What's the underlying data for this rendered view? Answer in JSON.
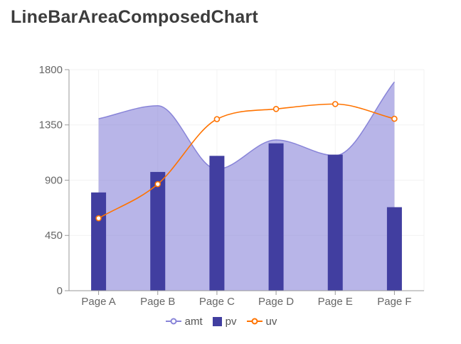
{
  "page": {
    "title": "LineBarAreaComposedChart"
  },
  "chart_data": {
    "type": "composed",
    "categories": [
      "Page A",
      "Page B",
      "Page C",
      "Page D",
      "Page E",
      "Page F"
    ],
    "series": [
      {
        "name": "amt",
        "type": "area",
        "color": "#8884d8",
        "fill_opacity": 0.6,
        "values": [
          1400,
          1506,
          989,
          1228,
          1100,
          1700
        ]
      },
      {
        "name": "pv",
        "type": "bar",
        "color": "#413ea0",
        "values": [
          800,
          967,
          1098,
          1200,
          1108,
          680
        ]
      },
      {
        "name": "uv",
        "type": "line",
        "color": "#ff7300",
        "values": [
          590,
          868,
          1397,
          1480,
          1520,
          1400
        ]
      }
    ],
    "xlabel": "",
    "ylabel": "",
    "ylim": [
      0,
      1800
    ],
    "yticks": [
      0,
      450,
      900,
      1350,
      1800
    ],
    "grid": true,
    "legend_position": "bottom",
    "axis_color": "#999999",
    "tick_label_color": "#666666",
    "grid_color": "#f2f2f2",
    "dot_fill": "#ffffff"
  }
}
